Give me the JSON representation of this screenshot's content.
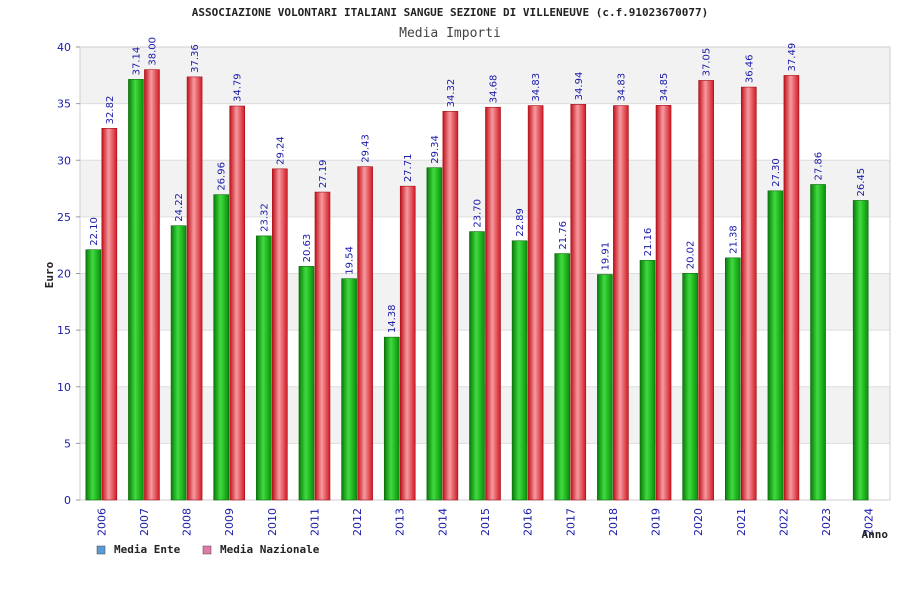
{
  "chart_data": {
    "type": "bar",
    "title": "ASSOCIAZIONE VOLONTARI ITALIANI SANGUE SEZIONE DI VILLENEUVE (c.f.91023670077)",
    "subtitle": "Media Importi",
    "xlabel": "Anno",
    "ylabel": "Euro",
    "ylim": [
      0,
      40
    ],
    "yticks": [
      0,
      5,
      10,
      15,
      20,
      25,
      30,
      35,
      40
    ],
    "grid": true,
    "legend_position": "bottom-left",
    "categories": [
      "2006",
      "2007",
      "2008",
      "2009",
      "2010",
      "2011",
      "2012",
      "2013",
      "2014",
      "2015",
      "2016",
      "2017",
      "2018",
      "2019",
      "2020",
      "2021",
      "2022",
      "2023",
      "2024"
    ],
    "series": [
      {
        "name": "Media Ente",
        "color": "#19b519",
        "legend_color": "#5b9bd5",
        "values": [
          22.1,
          37.14,
          24.22,
          26.96,
          23.32,
          20.63,
          19.54,
          14.38,
          29.34,
          23.7,
          22.89,
          21.76,
          19.91,
          21.16,
          20.02,
          21.38,
          27.3,
          27.86,
          26.45
        ],
        "labels": [
          "22.10",
          "37.14",
          "24.22",
          "26.96",
          "23.32",
          "20.63",
          "19.54",
          "14.38",
          "29.34",
          "23.70",
          "22.89",
          "21.76",
          "19.91",
          "21.16",
          "20.02",
          "21.38",
          "27.30",
          "27.86",
          "26.45"
        ]
      },
      {
        "name": "Media Nazionale",
        "color": "#e8323a",
        "legend_color": "#e07aa8",
        "values": [
          32.82,
          38.0,
          37.36,
          34.79,
          29.24,
          27.19,
          29.43,
          27.71,
          34.32,
          34.68,
          34.83,
          34.94,
          34.83,
          34.85,
          37.05,
          36.46,
          37.49,
          null,
          null
        ],
        "labels": [
          "32.82",
          "38.00",
          "37.36",
          "34.79",
          "29.24",
          "27.19",
          "29.43",
          "27.71",
          "34.32",
          "34.68",
          "34.83",
          "34.94",
          "34.83",
          "34.85",
          "37.05",
          "36.46",
          "37.49",
          "",
          ""
        ]
      }
    ]
  }
}
